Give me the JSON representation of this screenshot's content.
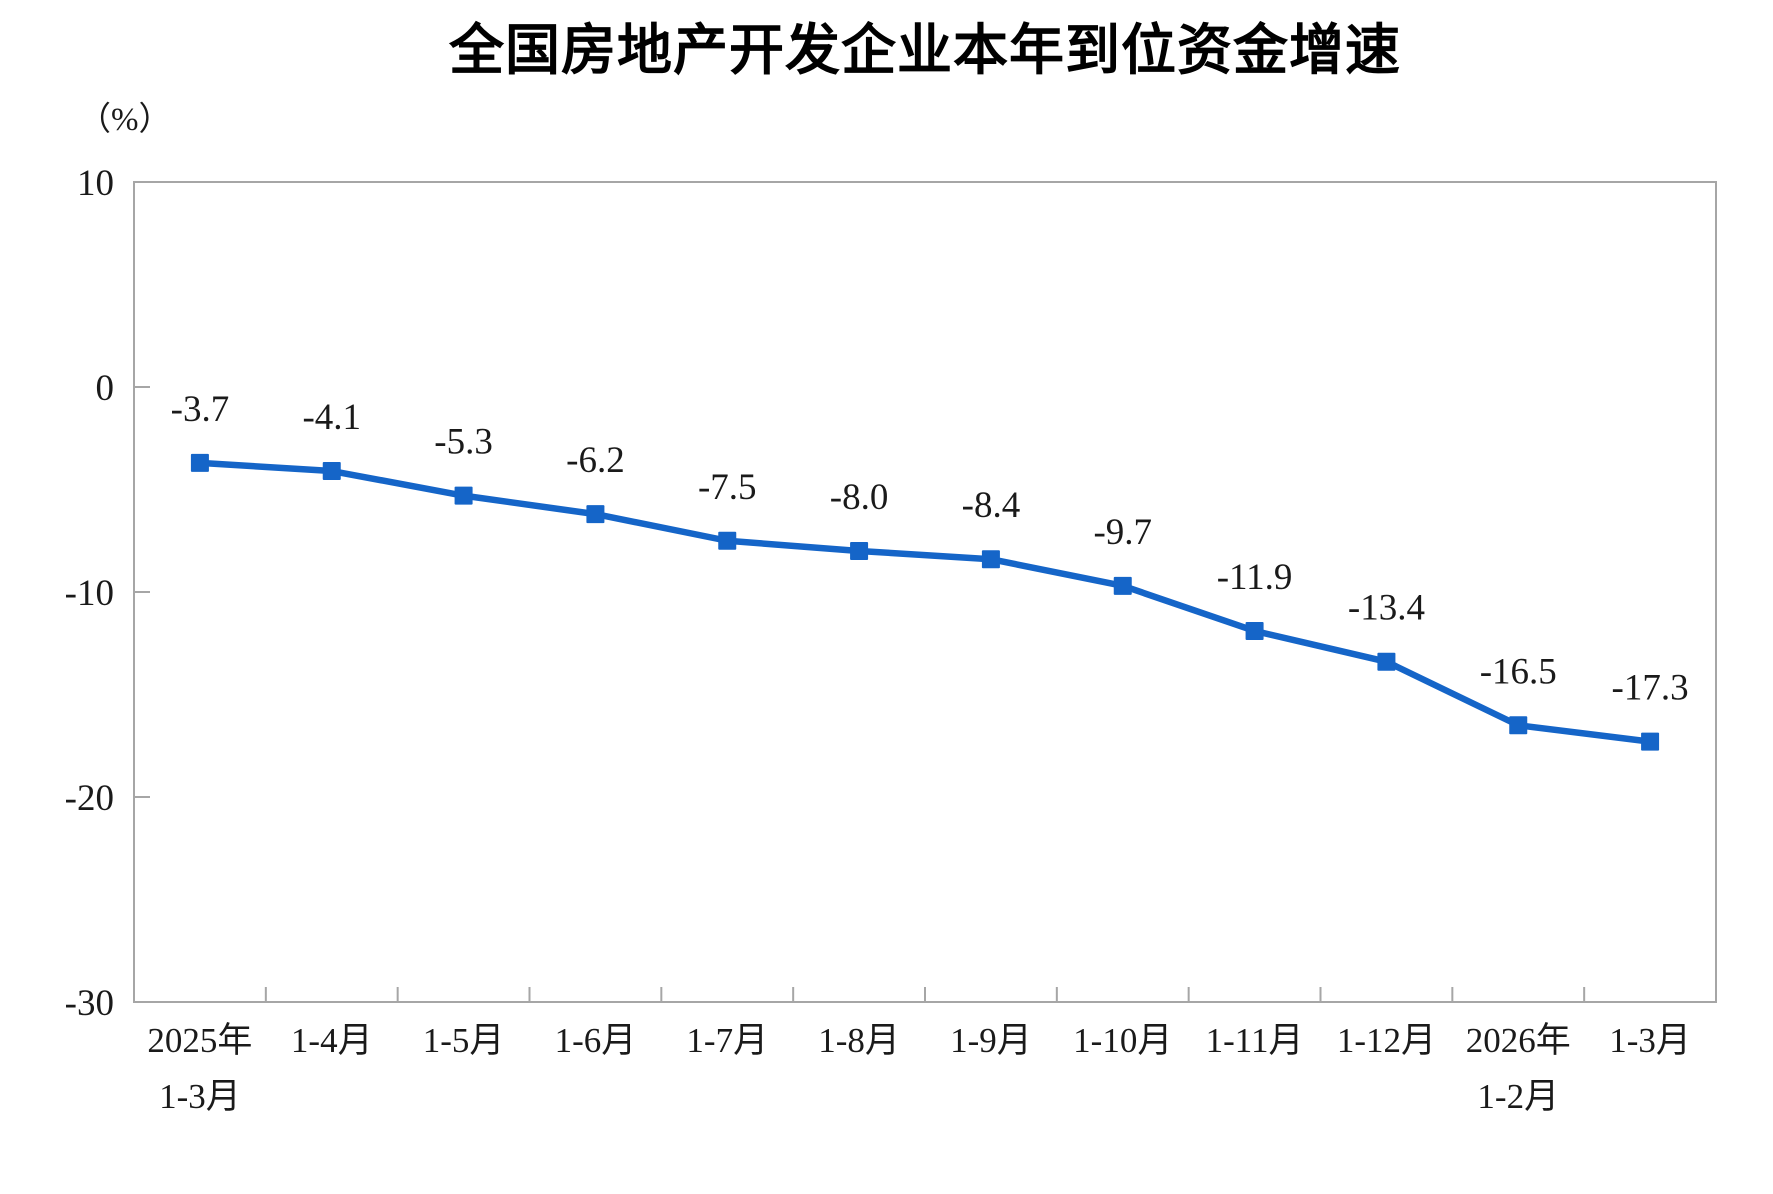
{
  "page": {
    "title": "全国房地产开发企业本年到位资金增速",
    "unit_label": "（%）"
  },
  "chart_data": {
    "type": "line",
    "title": "全国房地产开发企业本年到位资金增速",
    "ylabel": "（%）",
    "categories": [
      "2025年\n1-3月",
      "1-4月",
      "1-5月",
      "1-6月",
      "1-7月",
      "1-8月",
      "1-9月",
      "1-10月",
      "1-11月",
      "1-12月",
      "2026年\n1-2月",
      "1-3月"
    ],
    "values": [
      -3.7,
      -4.1,
      -5.3,
      -6.2,
      -7.5,
      -8.0,
      -8.4,
      -9.7,
      -11.9,
      -13.4,
      -16.5,
      -17.3
    ],
    "ylim": [
      -30,
      10
    ],
    "yticks": [
      10,
      0,
      -10,
      -20,
      -30
    ],
    "grid": false,
    "legend": false,
    "marker": "square",
    "line_color": "#1565C8",
    "axis_color": "#a6a6a6",
    "text_color": "#1a1a1a"
  }
}
